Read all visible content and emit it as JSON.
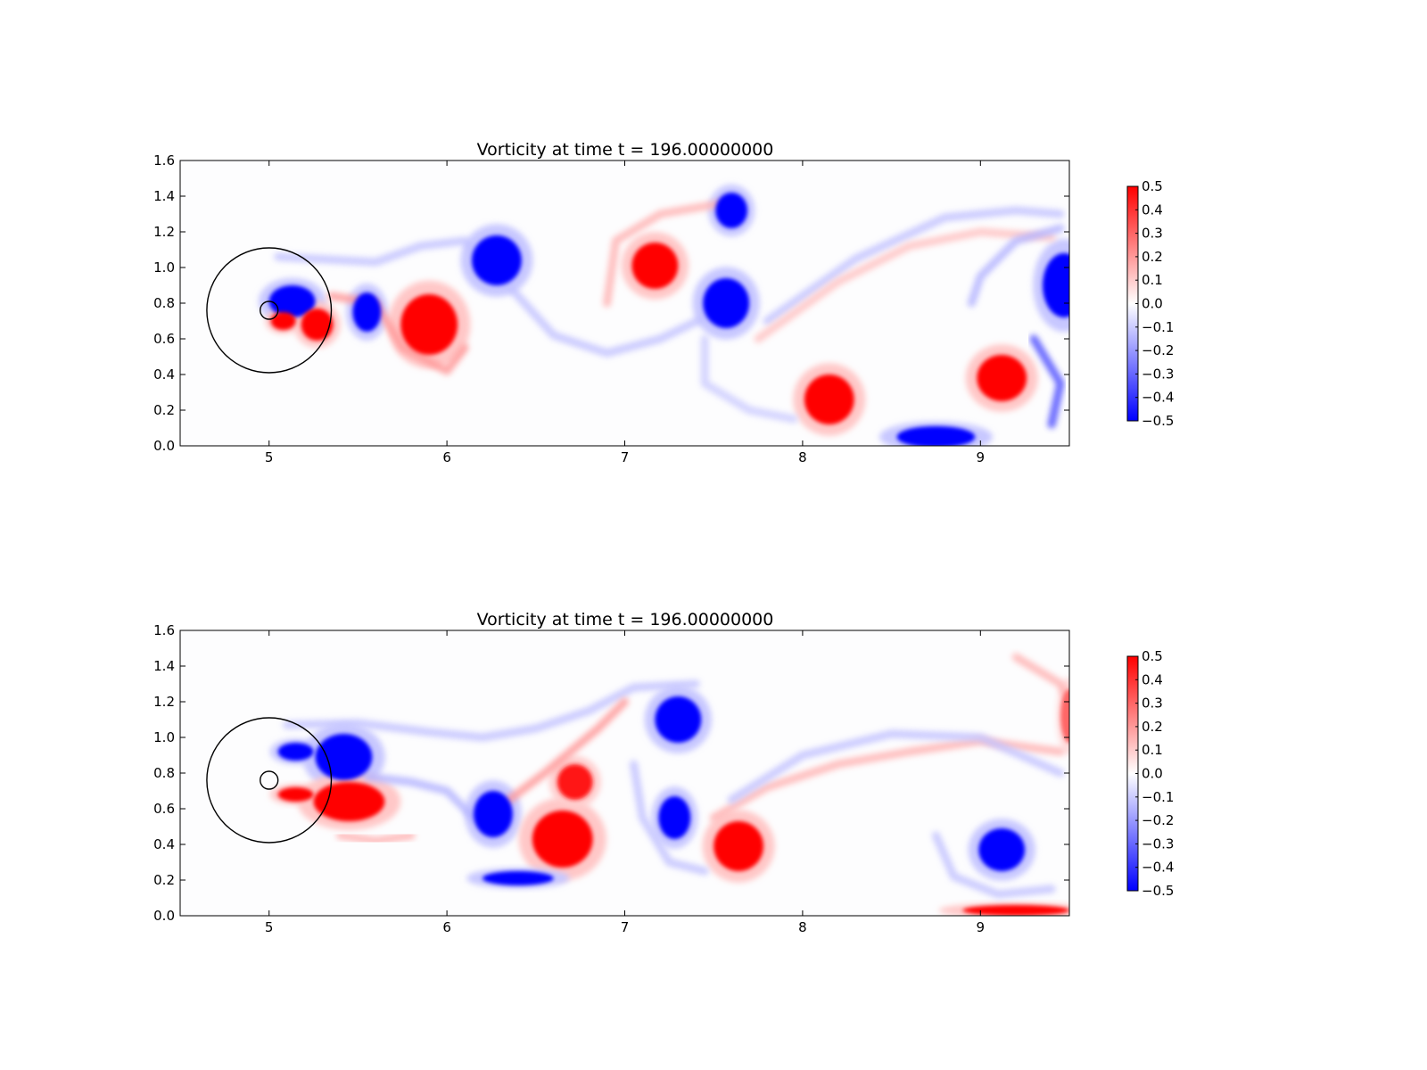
{
  "chart_data": [
    {
      "type": "heatmap",
      "title": "Vorticity at time t =   196.00000000",
      "xlabel": "",
      "ylabel": "",
      "xlim": [
        4.5,
        9.5
      ],
      "ylim": [
        0.0,
        1.6
      ],
      "xticks": [
        "5",
        "6",
        "7",
        "8",
        "9"
      ],
      "yticks": [
        "0.0",
        "0.2",
        "0.4",
        "0.6",
        "0.8",
        "1.0",
        "1.2",
        "1.4",
        "1.6"
      ],
      "colormap": "bwr",
      "colorbar": {
        "range": [
          -0.5,
          0.5
        ],
        "ticks": [
          "−0.5",
          "−0.4",
          "−0.3",
          "−0.2",
          "−0.1",
          "0.0",
          "0.1",
          "0.2",
          "0.3",
          "0.4",
          "0.5"
        ]
      },
      "circles": [
        {
          "cx": 5.0,
          "cy": 0.76,
          "r": 0.35
        },
        {
          "cx": 5.0,
          "cy": 0.76,
          "r": 0.05
        }
      ],
      "vortices": [
        {
          "x": 5.13,
          "y": 0.81,
          "rx": 0.13,
          "ry": 0.09,
          "v": -0.5
        },
        {
          "x": 5.08,
          "y": 0.7,
          "rx": 0.07,
          "ry": 0.05,
          "v": 0.5
        },
        {
          "x": 5.27,
          "y": 0.68,
          "rx": 0.09,
          "ry": 0.09,
          "v": 0.5
        },
        {
          "x": 5.55,
          "y": 0.75,
          "rx": 0.08,
          "ry": 0.11,
          "v": -0.5
        },
        {
          "x": 5.9,
          "y": 0.68,
          "rx": 0.16,
          "ry": 0.17,
          "v": 0.5
        },
        {
          "x": 6.28,
          "y": 1.04,
          "rx": 0.14,
          "ry": 0.14,
          "v": -0.5
        },
        {
          "x": 7.17,
          "y": 1.01,
          "rx": 0.13,
          "ry": 0.13,
          "v": 0.5
        },
        {
          "x": 7.6,
          "y": 1.32,
          "rx": 0.09,
          "ry": 0.1,
          "v": -0.5
        },
        {
          "x": 7.57,
          "y": 0.8,
          "rx": 0.13,
          "ry": 0.14,
          "v": -0.5
        },
        {
          "x": 8.15,
          "y": 0.26,
          "rx": 0.14,
          "ry": 0.14,
          "v": 0.5
        },
        {
          "x": 9.12,
          "y": 0.38,
          "rx": 0.14,
          "ry": 0.13,
          "v": 0.5
        },
        {
          "x": 9.47,
          "y": 0.9,
          "rx": 0.12,
          "ry": 0.18,
          "v": -0.5
        },
        {
          "x": 8.75,
          "y": 0.05,
          "rx": 0.22,
          "ry": 0.06,
          "v": -0.5
        }
      ],
      "sheets": [
        {
          "points": [
            [
              5.05,
              1.06
            ],
            [
              5.6,
              1.03
            ],
            [
              5.85,
              1.12
            ],
            [
              6.1,
              1.15
            ],
            [
              6.3,
              0.95
            ],
            [
              6.6,
              0.62
            ],
            [
              6.9,
              0.52
            ],
            [
              7.2,
              0.6
            ],
            [
              7.45,
              0.72
            ]
          ],
          "v": -0.12
        },
        {
          "points": [
            [
              5.35,
              0.84
            ],
            [
              5.6,
              0.8
            ],
            [
              5.75,
              0.55
            ],
            [
              6.0,
              0.42
            ],
            [
              6.1,
              0.55
            ]
          ],
          "v": 0.2
        },
        {
          "points": [
            [
              6.9,
              0.8
            ],
            [
              6.95,
              1.15
            ],
            [
              7.2,
              1.3
            ],
            [
              7.55,
              1.36
            ]
          ],
          "v": 0.15
        },
        {
          "points": [
            [
              7.45,
              0.6
            ],
            [
              7.45,
              0.35
            ],
            [
              7.7,
              0.2
            ],
            [
              7.95,
              0.15
            ]
          ],
          "v": -0.1
        },
        {
          "points": [
            [
              7.8,
              0.7
            ],
            [
              8.3,
              1.05
            ],
            [
              8.8,
              1.28
            ],
            [
              9.2,
              1.32
            ],
            [
              9.45,
              1.3
            ]
          ],
          "v": -0.12
        },
        {
          "points": [
            [
              7.75,
              0.6
            ],
            [
              8.2,
              0.92
            ],
            [
              8.6,
              1.12
            ],
            [
              9.0,
              1.2
            ],
            [
              9.4,
              1.17
            ]
          ],
          "v": 0.12
        },
        {
          "points": [
            [
              8.95,
              0.8
            ],
            [
              9.0,
              0.95
            ],
            [
              9.2,
              1.15
            ],
            [
              9.45,
              1.22
            ]
          ],
          "v": -0.15
        },
        {
          "points": [
            [
              9.3,
              0.6
            ],
            [
              9.45,
              0.35
            ],
            [
              9.4,
              0.12
            ]
          ],
          "v": -0.35
        }
      ]
    },
    {
      "type": "heatmap",
      "title": "Vorticity at time t =   196.00000000",
      "xlabel": "",
      "ylabel": "",
      "xlim": [
        4.5,
        9.5
      ],
      "ylim": [
        0.0,
        1.6
      ],
      "xticks": [
        "5",
        "6",
        "7",
        "8",
        "9"
      ],
      "yticks": [
        "0.0",
        "0.2",
        "0.4",
        "0.6",
        "0.8",
        "1.0",
        "1.2",
        "1.4",
        "1.6"
      ],
      "colormap": "bwr",
      "colorbar": {
        "range": [
          -0.5,
          0.5
        ],
        "ticks": [
          "−0.5",
          "−0.4",
          "−0.3",
          "−0.2",
          "−0.1",
          "0.0",
          "0.1",
          "0.2",
          "0.3",
          "0.4",
          "0.5"
        ]
      },
      "circles": [
        {
          "cx": 5.0,
          "cy": 0.76,
          "r": 0.35
        },
        {
          "cx": 5.0,
          "cy": 0.76,
          "r": 0.05
        }
      ],
      "vortices": [
        {
          "x": 5.42,
          "y": 0.89,
          "rx": 0.16,
          "ry": 0.13,
          "v": -0.5
        },
        {
          "x": 5.15,
          "y": 0.92,
          "rx": 0.1,
          "ry": 0.05,
          "v": -0.5
        },
        {
          "x": 5.45,
          "y": 0.64,
          "rx": 0.2,
          "ry": 0.11,
          "v": 0.5
        },
        {
          "x": 5.15,
          "y": 0.68,
          "rx": 0.1,
          "ry": 0.04,
          "v": 0.5
        },
        {
          "x": 6.26,
          "y": 0.57,
          "rx": 0.11,
          "ry": 0.13,
          "v": -0.5
        },
        {
          "x": 6.65,
          "y": 0.43,
          "rx": 0.17,
          "ry": 0.16,
          "v": 0.5
        },
        {
          "x": 6.72,
          "y": 0.75,
          "rx": 0.1,
          "ry": 0.1,
          "v": 0.45
        },
        {
          "x": 7.3,
          "y": 1.1,
          "rx": 0.13,
          "ry": 0.13,
          "v": -0.5
        },
        {
          "x": 7.28,
          "y": 0.55,
          "rx": 0.09,
          "ry": 0.12,
          "v": -0.5
        },
        {
          "x": 7.64,
          "y": 0.39,
          "rx": 0.14,
          "ry": 0.14,
          "v": 0.5
        },
        {
          "x": 9.12,
          "y": 0.37,
          "rx": 0.13,
          "ry": 0.12,
          "v": -0.5
        },
        {
          "x": 9.2,
          "y": 0.03,
          "rx": 0.3,
          "ry": 0.03,
          "v": 0.5
        },
        {
          "x": 9.5,
          "y": 1.12,
          "rx": 0.05,
          "ry": 0.15,
          "v": 0.3
        },
        {
          "x": 6.4,
          "y": 0.21,
          "rx": 0.2,
          "ry": 0.04,
          "v": -0.5
        }
      ],
      "sheets": [
        {
          "points": [
            [
              5.1,
              1.07
            ],
            [
              5.5,
              1.08
            ],
            [
              5.9,
              1.03
            ],
            [
              6.2,
              1.0
            ],
            [
              6.5,
              1.05
            ],
            [
              6.8,
              1.15
            ],
            [
              7.05,
              1.28
            ],
            [
              7.4,
              1.3
            ]
          ],
          "v": -0.12
        },
        {
          "points": [
            [
              5.55,
              0.78
            ],
            [
              5.8,
              0.75
            ],
            [
              6.0,
              0.7
            ],
            [
              6.15,
              0.55
            ]
          ],
          "v": -0.15
        },
        {
          "points": [
            [
              5.4,
              0.45
            ],
            [
              5.6,
              0.42
            ],
            [
              5.8,
              0.45
            ]
          ],
          "v": 0.15
        },
        {
          "points": [
            [
              6.35,
              0.65
            ],
            [
              6.55,
              0.8
            ],
            [
              6.85,
              1.05
            ],
            [
              7.0,
              1.2
            ]
          ],
          "v": 0.2
        },
        {
          "points": [
            [
              7.05,
              0.85
            ],
            [
              7.1,
              0.55
            ],
            [
              7.25,
              0.3
            ],
            [
              7.45,
              0.25
            ]
          ],
          "v": -0.12
        },
        {
          "points": [
            [
              7.5,
              0.55
            ],
            [
              7.8,
              0.72
            ],
            [
              8.2,
              0.85
            ],
            [
              8.6,
              0.92
            ],
            [
              9.0,
              0.98
            ],
            [
              9.45,
              0.92
            ]
          ],
          "v": 0.15
        },
        {
          "points": [
            [
              7.6,
              0.65
            ],
            [
              8.0,
              0.9
            ],
            [
              8.5,
              1.02
            ],
            [
              9.0,
              1.0
            ],
            [
              9.45,
              0.8
            ]
          ],
          "v": -0.12
        },
        {
          "points": [
            [
              8.75,
              0.45
            ],
            [
              8.85,
              0.22
            ],
            [
              9.1,
              0.12
            ],
            [
              9.4,
              0.15
            ]
          ],
          "v": -0.12
        },
        {
          "points": [
            [
              9.2,
              1.45
            ],
            [
              9.45,
              1.3
            ],
            [
              9.5,
              1.2
            ]
          ],
          "v": 0.15
        }
      ]
    }
  ]
}
